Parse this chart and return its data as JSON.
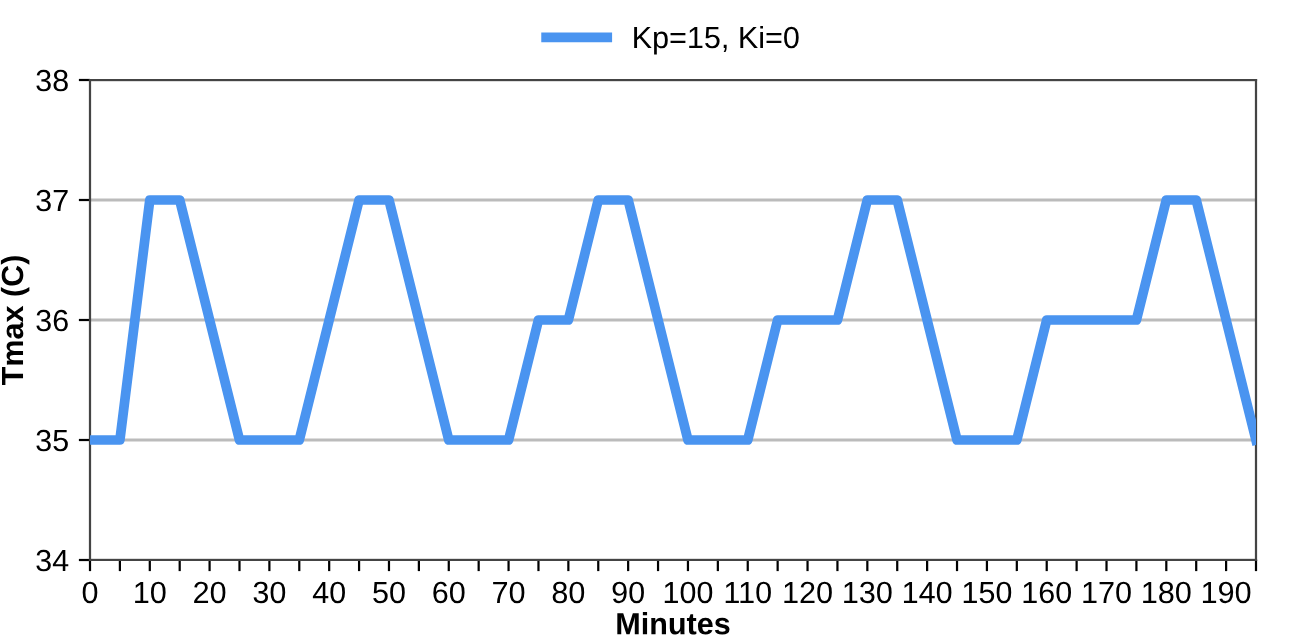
{
  "chart_data": {
    "type": "line",
    "xlabel": "Minutes",
    "ylabel": "Tmax (C)",
    "x": [
      0,
      5,
      10,
      15,
      25,
      35,
      45,
      50,
      60,
      70,
      75,
      80,
      85,
      90,
      100,
      110,
      115,
      125,
      130,
      135,
      145,
      155,
      160,
      175,
      180,
      185,
      195
    ],
    "series": [
      {
        "name": "Kp=15, Ki=0",
        "color": "#4a94f0",
        "values": [
          35,
          35,
          37,
          37,
          35,
          35,
          37,
          37,
          35,
          35,
          36,
          36,
          37,
          37,
          35,
          35,
          36,
          36,
          37,
          37,
          35,
          35,
          36,
          36,
          37,
          37,
          35
        ]
      }
    ],
    "xlim": [
      0,
      195
    ],
    "xticks": [
      0,
      {
        "value": 5,
        "label": null
      },
      10,
      {
        "value": 15,
        "label": null
      },
      20,
      {
        "value": 25,
        "label": null
      },
      30,
      {
        "value": 35,
        "label": null
      },
      40,
      {
        "value": 45,
        "label": null
      },
      50,
      {
        "value": 55,
        "label": null
      },
      60,
      {
        "value": 65,
        "label": null
      },
      70,
      {
        "value": 75,
        "label": null
      },
      80,
      {
        "value": 85,
        "label": null
      },
      90,
      {
        "value": 95,
        "label": null
      },
      100,
      {
        "value": 105,
        "label": null
      },
      110,
      {
        "value": 115,
        "label": null
      },
      120,
      {
        "value": 125,
        "label": null
      },
      130,
      {
        "value": 135,
        "label": null
      },
      140,
      {
        "value": 145,
        "label": null
      },
      150,
      {
        "value": 155,
        "label": null
      },
      160,
      {
        "value": 165,
        "label": null
      },
      170,
      {
        "value": 175,
        "label": null
      },
      180,
      {
        "value": 185,
        "label": null
      },
      190,
      {
        "value": 195,
        "label": null
      }
    ],
    "ylim": [
      34,
      38
    ],
    "yticks": [
      34,
      35,
      36,
      37,
      38
    ],
    "grid": "y",
    "legend": "top",
    "marker": "none",
    "line_style": "solid"
  }
}
